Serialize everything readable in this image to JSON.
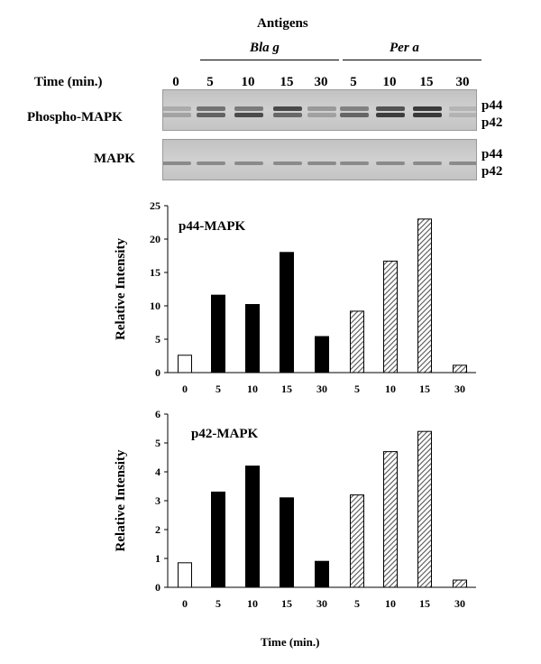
{
  "figure": {
    "antigens_label": "Antigens",
    "groups": [
      "Bla g",
      "Per a"
    ],
    "time_label": "Time (min.)",
    "lane_times": [
      "0",
      "5",
      "10",
      "15",
      "30",
      "5",
      "10",
      "15",
      "30"
    ],
    "blots": [
      {
        "name": "Phospho-MAPK",
        "bands": [
          "p44",
          "p42"
        ]
      },
      {
        "name": "MAPK",
        "bands": [
          "p44",
          "p42"
        ]
      }
    ],
    "x_axis_title": "Time (min.)"
  },
  "chart_data": [
    {
      "type": "bar",
      "title": "p44-MAPK",
      "ylabel": "Relative Intensity",
      "xlabel": "",
      "categories": [
        "0",
        "5",
        "10",
        "15",
        "30",
        "5",
        "10",
        "15",
        "30"
      ],
      "values": [
        2.6,
        11.6,
        10.2,
        18.0,
        5.4,
        9.2,
        16.7,
        23.0,
        1.1
      ],
      "bar_styles": [
        "white",
        "black",
        "black",
        "black",
        "black",
        "hatched",
        "hatched",
        "hatched",
        "hatched"
      ],
      "ylim": [
        0,
        25
      ],
      "yticks": [
        0,
        5,
        10,
        15,
        20,
        25
      ]
    },
    {
      "type": "bar",
      "title": "p42-MAPK",
      "ylabel": "Relative Intensity",
      "xlabel": "Time (min.)",
      "categories": [
        "0",
        "5",
        "10",
        "15",
        "30",
        "5",
        "10",
        "15",
        "30"
      ],
      "values": [
        0.85,
        3.3,
        4.2,
        3.1,
        0.9,
        3.2,
        4.7,
        5.4,
        0.25
      ],
      "bar_styles": [
        "white",
        "black",
        "black",
        "black",
        "black",
        "hatched",
        "hatched",
        "hatched",
        "hatched"
      ],
      "ylim": [
        0,
        6
      ],
      "yticks": [
        0,
        1,
        2,
        3,
        4,
        5,
        6
      ]
    }
  ]
}
